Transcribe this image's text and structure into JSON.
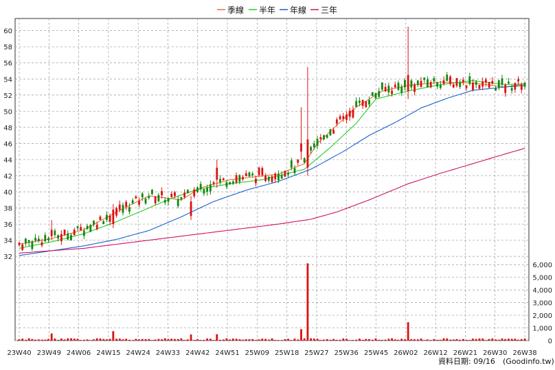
{
  "chart_data": {
    "type": "candlestick",
    "legend": [
      {
        "name": "季線",
        "color": "#e8702a"
      },
      {
        "name": "半年",
        "color": "#22cc22"
      },
      {
        "name": "年線",
        "color": "#1a5fd0"
      },
      {
        "name": "三年",
        "color": "#cc1166"
      }
    ],
    "colors": {
      "up": "#dd1111",
      "down": "#118811",
      "volume": "#dd1111",
      "grid": "#999999"
    },
    "price_axis": {
      "ylim": [
        31.5,
        61.5
      ],
      "ticks": [
        32,
        34,
        36,
        38,
        40,
        42,
        44,
        46,
        48,
        50,
        52,
        54,
        56,
        58,
        60
      ],
      "side": "left"
    },
    "volume_axis": {
      "ylim": [
        0,
        6500
      ],
      "ticks": [
        0,
        1000,
        2000,
        3000,
        4000,
        5000,
        6000
      ],
      "tick_labels": [
        "0",
        "1,000",
        "2,000",
        "3,000",
        "4,000",
        "5,000",
        "6,000"
      ],
      "side": "right"
    },
    "x_categories": [
      "23W40",
      "23W49",
      "24W06",
      "24W15",
      "24W24",
      "24W33",
      "24W42",
      "24W51",
      "25W09",
      "25W18",
      "25W27",
      "25W36",
      "25W45",
      "26W02",
      "26W12",
      "26W21",
      "26W30",
      "26W38"
    ],
    "weeks_total": 157,
    "ma_series": [
      {
        "name": "季線",
        "points": [
          [
            0,
            33.5
          ],
          [
            10,
            34.2
          ],
          [
            20,
            35.3
          ],
          [
            30,
            37.5
          ],
          [
            40,
            39.5
          ],
          [
            50,
            39.0
          ],
          [
            56,
            40.5
          ],
          [
            65,
            41.5
          ],
          [
            80,
            42.2
          ],
          [
            88,
            43.5
          ],
          [
            92,
            46.0
          ],
          [
            100,
            49.0
          ],
          [
            104,
            50.5
          ],
          [
            112,
            52.5
          ],
          [
            120,
            53.2
          ],
          [
            130,
            53.6
          ],
          [
            140,
            53.5
          ],
          [
            150,
            53.0
          ],
          [
            156,
            53.4
          ]
        ]
      },
      {
        "name": "半年",
        "points": [
          [
            0,
            33.0
          ],
          [
            10,
            33.8
          ],
          [
            20,
            34.8
          ],
          [
            30,
            36.3
          ],
          [
            40,
            38.0
          ],
          [
            47,
            39.2
          ],
          [
            55,
            40.3
          ],
          [
            65,
            41.0
          ],
          [
            75,
            41.5
          ],
          [
            88,
            42.8
          ],
          [
            96,
            45.5
          ],
          [
            104,
            48.5
          ],
          [
            110,
            51.5
          ],
          [
            120,
            52.5
          ],
          [
            130,
            53.3
          ],
          [
            140,
            53.8
          ],
          [
            150,
            53.3
          ],
          [
            156,
            53.4
          ]
        ]
      },
      {
        "name": "年線",
        "points": [
          [
            0,
            32.1
          ],
          [
            10,
            32.7
          ],
          [
            20,
            33.3
          ],
          [
            30,
            34.1
          ],
          [
            40,
            35.2
          ],
          [
            50,
            36.9
          ],
          [
            60,
            38.8
          ],
          [
            70,
            40.2
          ],
          [
            80,
            41.3
          ],
          [
            90,
            42.8
          ],
          [
            100,
            45.0
          ],
          [
            108,
            47.0
          ],
          [
            116,
            48.6
          ],
          [
            124,
            50.4
          ],
          [
            132,
            51.6
          ],
          [
            140,
            52.6
          ],
          [
            150,
            53.0
          ],
          [
            156,
            53.2
          ]
        ]
      },
      {
        "name": "三年",
        "points": [
          [
            0,
            32.4
          ],
          [
            20,
            33.0
          ],
          [
            40,
            34.0
          ],
          [
            60,
            35.0
          ],
          [
            80,
            36.0
          ],
          [
            90,
            36.6
          ],
          [
            98,
            37.5
          ],
          [
            108,
            39.0
          ],
          [
            120,
            41.0
          ],
          [
            130,
            42.3
          ],
          [
            140,
            43.5
          ],
          [
            150,
            44.7
          ],
          [
            156,
            45.4
          ]
        ]
      }
    ],
    "spikes": [
      {
        "week": 89,
        "high": 55.5,
        "low": 42.0,
        "open": 43.0,
        "close": 46.5,
        "volume": 6100
      },
      {
        "week": 87,
        "high": 50.5,
        "low": 44.0,
        "open": 45.0,
        "close": 46.0,
        "volume": 900
      },
      {
        "week": 120,
        "high": 60.5,
        "low": 51.5,
        "open": 52.5,
        "close": 54.5,
        "volume": 1450
      },
      {
        "week": 61,
        "high": 44.0,
        "low": 40.5,
        "open": 41.5,
        "close": 43.0,
        "volume": 500
      },
      {
        "week": 10,
        "high": 36.5,
        "low": 34.0,
        "open": 34.5,
        "close": 35.3,
        "volume": 560
      },
      {
        "week": 29,
        "high": 38.5,
        "low": 35.5,
        "open": 36.0,
        "close": 37.8,
        "volume": 740
      },
      {
        "week": 53,
        "high": 39.5,
        "low": 36.5,
        "open": 37.0,
        "close": 38.8,
        "volume": 480
      }
    ],
    "footer": "資料日期: 09/16",
    "source": "(Goodinfo.tw)"
  }
}
